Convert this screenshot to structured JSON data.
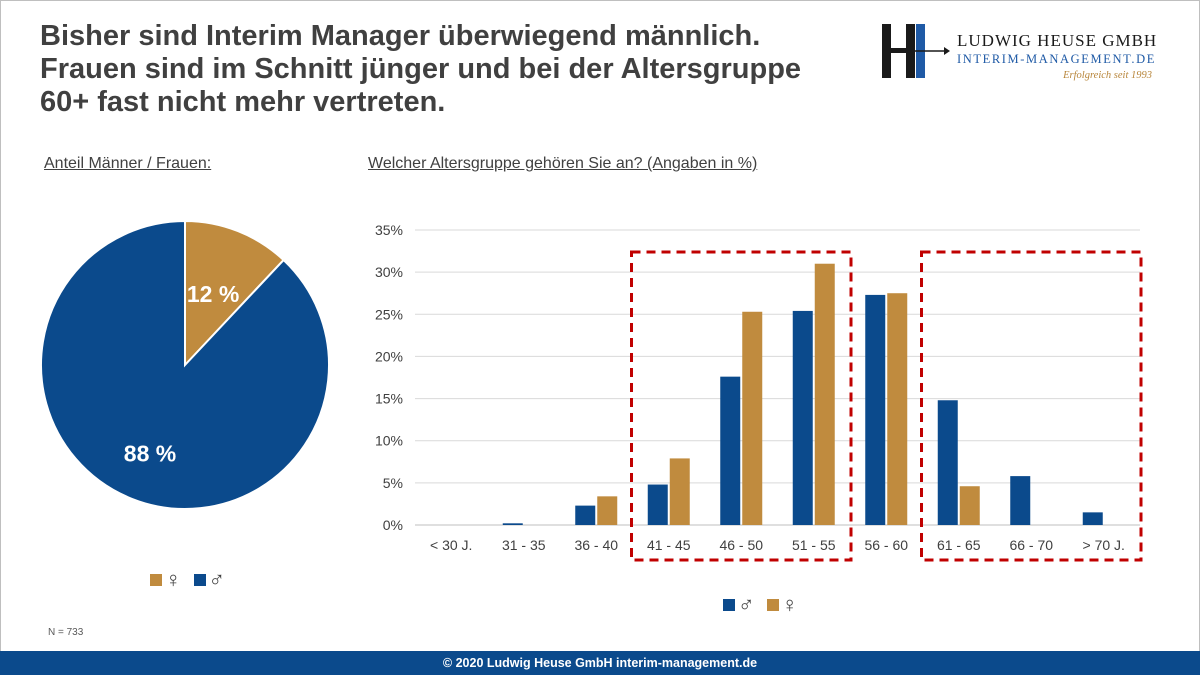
{
  "title_lines": [
    "Bisher sind Interim Manager überwiegend männlich.",
    "Frauen sind im Schnitt jünger und bei der Altersgruppe",
    "60+ fast nicht mehr vertreten."
  ],
  "logo": {
    "name": "LUDWIG HEUSE GMBH",
    "sub": "INTERIM-MANAGEMENT.DE",
    "slogan": "Erfolgreich seit 1993"
  },
  "labels": {
    "pie": "Anteil Männer / Frauen:",
    "bar": "Welcher Altersgruppe gehören Sie an? (Angaben in %)"
  },
  "legend": {
    "female": "♀",
    "male": "♂"
  },
  "sample_note": "N = 733",
  "footer": "© 2020 Ludwig Heuse GmbH interim-management.de",
  "colors": {
    "male": "#0b4a8c",
    "female": "#c08b3e",
    "highlight": "#c00000",
    "text": "#404040",
    "grid": "#d9d9d9"
  },
  "chart_data": [
    {
      "type": "pie",
      "slices": [
        {
          "key": "female",
          "value": 12,
          "label": "12 %"
        },
        {
          "key": "male",
          "value": 88,
          "label": "88 %"
        }
      ]
    },
    {
      "type": "bar",
      "categories": [
        "< 30 J.",
        "31 - 35",
        "36 - 40",
        "41 - 45",
        "46 - 50",
        "51 - 55",
        "56 - 60",
        "61 - 65",
        "66 - 70",
        "> 70 J."
      ],
      "series": [
        {
          "key": "male",
          "values": [
            0,
            0.2,
            2.3,
            4.8,
            17.6,
            25.4,
            27.3,
            14.8,
            5.8,
            1.5
          ]
        },
        {
          "key": "female",
          "values": [
            0,
            0,
            3.4,
            7.9,
            25.3,
            31.0,
            27.5,
            4.6,
            0,
            0
          ]
        }
      ],
      "ylim": [
        0,
        35
      ],
      "yticks": [
        "0%",
        "5%",
        "10%",
        "15%",
        "20%",
        "25%",
        "30%",
        "35%"
      ],
      "grid": true,
      "highlight_groups": [
        [
          "41 - 45",
          "51 - 55"
        ],
        [
          "61 - 65",
          "> 70 J."
        ]
      ]
    }
  ]
}
